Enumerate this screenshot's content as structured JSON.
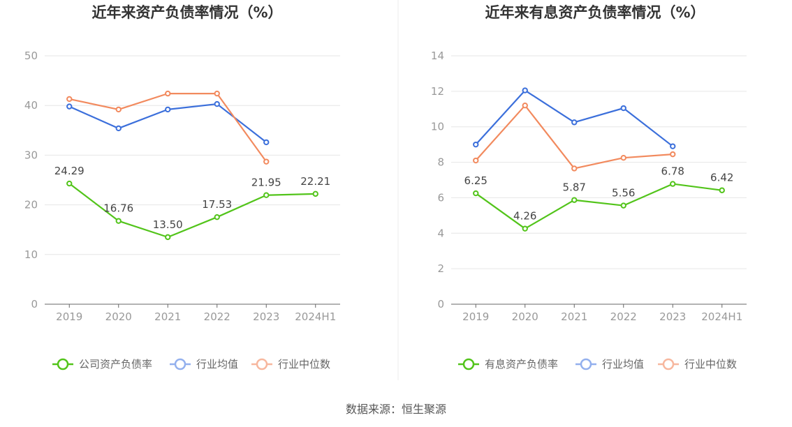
{
  "source_text": "数据来源：恒生聚源",
  "chart_data": [
    {
      "type": "line",
      "title": "近年来资产负债率情况（%）",
      "categories": [
        "2019",
        "2020",
        "2021",
        "2022",
        "2023",
        "2024H1"
      ],
      "ylim": [
        0,
        50
      ],
      "yticks": [
        "0",
        "10",
        "20",
        "30",
        "40",
        "50"
      ],
      "grid": true,
      "legend_position": "bottom",
      "series": [
        {
          "name": "公司资产负债率",
          "color": "#52c41a",
          "values": [
            24.29,
            16.76,
            13.5,
            17.53,
            21.95,
            22.21
          ],
          "labels": [
            "24.29",
            "16.76",
            "13.50",
            "17.53",
            "21.95",
            "22.21"
          ]
        },
        {
          "name": "行业均值",
          "color": "#3b6fdb",
          "values": [
            39.8,
            35.4,
            39.2,
            40.3,
            32.6,
            null
          ]
        },
        {
          "name": "行业中位数",
          "color": "#f28a5e",
          "values": [
            41.3,
            39.2,
            42.4,
            42.4,
            28.7,
            null
          ]
        }
      ]
    },
    {
      "type": "line",
      "title": "近年来有息资产负债率情况（%）",
      "categories": [
        "2019",
        "2020",
        "2021",
        "2022",
        "2023",
        "2024H1"
      ],
      "ylim": [
        0,
        14
      ],
      "yticks": [
        "0",
        "2",
        "4",
        "6",
        "8",
        "10",
        "12",
        "14"
      ],
      "grid": true,
      "legend_position": "bottom",
      "series": [
        {
          "name": "有息资产负债率",
          "color": "#52c41a",
          "values": [
            6.25,
            4.26,
            5.87,
            5.56,
            6.78,
            6.42
          ],
          "labels": [
            "6.25",
            "4.26",
            "5.87",
            "5.56",
            "6.78",
            "6.42"
          ]
        },
        {
          "name": "行业均值",
          "color": "#3b6fdb",
          "values": [
            9.0,
            12.05,
            10.25,
            11.05,
            8.9,
            null
          ]
        },
        {
          "name": "行业中位数",
          "color": "#f28a5e",
          "values": [
            8.1,
            11.2,
            7.65,
            8.25,
            8.45,
            null
          ]
        }
      ]
    }
  ]
}
